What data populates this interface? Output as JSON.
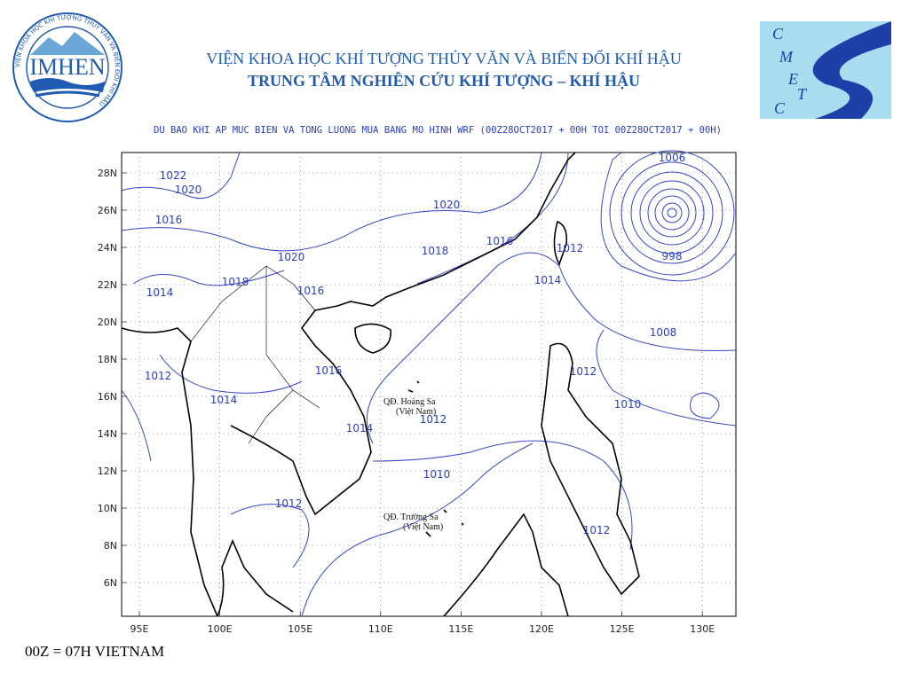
{
  "header": {
    "logo_left": "IMHEN",
    "logo_left_ring": "VIỆN KHOA HỌC KHÍ TƯỢNG THỦY VĂN VÀ BIẾN ĐỔI KHÍ HẬU",
    "logo_right_letters": [
      "C",
      "M",
      "E",
      "T",
      "C"
    ],
    "institute": "VIỆN KHOA HỌC KHÍ TƯỢNG THỦY VĂN VÀ BIẾN ĐỔI KHÍ HẬU",
    "center": "TRUNG TÂM NGHIÊN CỨU KHÍ TƯỢNG – KHÍ HẬU"
  },
  "map": {
    "title": "DU BAO KHI AP MUC BIEN VA TONG LUONG MUA BANG MO HINH WRF (00Z28OCT2017 + 00H TOI 00Z28OCT2017 + 00H)",
    "lat_labels": [
      "28N",
      "26N",
      "24N",
      "22N",
      "20N",
      "18N",
      "16N",
      "14N",
      "12N",
      "10N",
      "8N",
      "6N"
    ],
    "lon_labels": [
      "95E",
      "100E",
      "105E",
      "110E",
      "115E",
      "120E",
      "125E",
      "130E"
    ],
    "isobar_labels": [
      "1022",
      "1020",
      "1016",
      "1020",
      "1016",
      "1012",
      "1018",
      "1020",
      "1018",
      "1014",
      "1016",
      "1014",
      "1008",
      "998",
      "1006",
      "1016",
      "1012",
      "1014",
      "1012",
      "1010",
      "1012",
      "1014",
      "1010",
      "1012",
      "1012"
    ],
    "place_labels": [
      "QĐ. Hoàng Sa",
      "(Việt Nam)",
      "QĐ. Trường Sa",
      "(Việt Nam)"
    ]
  },
  "footer": "00Z = 07H VIETNAM"
}
